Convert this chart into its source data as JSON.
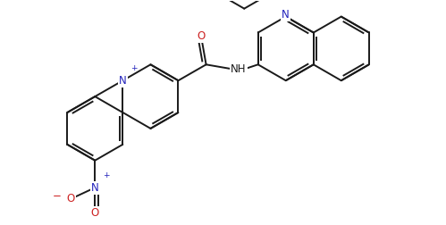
{
  "bg_color": "#ffffff",
  "line_color": "#1a1a1a",
  "N_color": "#2222bb",
  "O_color": "#cc2222",
  "line_width": 1.4,
  "font_size": 8.5,
  "figsize": [
    4.99,
    2.52
  ],
  "dpi": 100,
  "xlim": [
    -0.5,
    10.5
  ],
  "ylim": [
    -2.5,
    4.5
  ]
}
